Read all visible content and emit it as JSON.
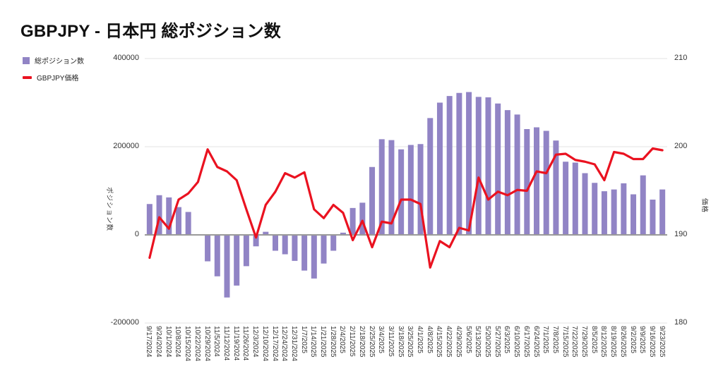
{
  "page": {
    "title": "GBPJPY - 日本円 総ポジション数"
  },
  "legend": {
    "position": "top-left",
    "items": [
      {
        "label": "総ポジション数",
        "marker": "bar-swatch",
        "color": "#9184C5"
      },
      {
        "label": "GBPJPY価格",
        "marker": "line-swatch",
        "color": "#EA1220"
      }
    ]
  },
  "chart_data": {
    "type": "combo",
    "title": "GBPJPY - 日本円 総ポジション数",
    "categories": [
      "9/17/2024",
      "9/24/2024",
      "10/1/2024",
      "10/8/2024",
      "10/15/2024",
      "10/22/2024",
      "10/29/2024",
      "11/5/2024",
      "11/12/2024",
      "11/19/2024",
      "11/26/2024",
      "12/3/2024",
      "12/10/2024",
      "12/17/2024",
      "12/24/2024",
      "12/31/2024",
      "1/7/2025",
      "1/14/2025",
      "1/21/2025",
      "1/28/2025",
      "2/4/2025",
      "2/11/2025",
      "2/18/2025",
      "2/25/2025",
      "3/4/2025",
      "3/11/2025",
      "3/18/2025",
      "3/25/2025",
      "4/1/2025",
      "4/8/2025",
      "4/15/2025",
      "4/22/2025",
      "4/29/2025",
      "5/6/2025",
      "5/13/2025",
      "5/20/2025",
      "5/27/2025",
      "6/3/2025",
      "6/10/2025",
      "6/17/2025",
      "6/24/2025",
      "7/1/2025",
      "7/8/2025",
      "7/15/2025",
      "7/22/2025",
      "7/29/2025",
      "8/5/2025",
      "8/12/2025",
      "8/19/2025",
      "8/26/2025",
      "9/2/2025",
      "9/9/2025",
      "9/16/2025",
      "9/23/2025"
    ],
    "series": [
      {
        "name": "総ポジション数",
        "type": "bar",
        "axis": "left",
        "color": "#9184C5",
        "values": [
          70000,
          90000,
          85000,
          63000,
          52000,
          0,
          -60000,
          -94000,
          -142000,
          -115000,
          -71000,
          -26000,
          7000,
          -36000,
          -44000,
          -59000,
          -81000,
          -99000,
          -65000,
          -36000,
          5000,
          61000,
          73000,
          154000,
          217000,
          215000,
          194000,
          204000,
          206000,
          265000,
          300000,
          315000,
          322000,
          324000,
          313000,
          312000,
          298000,
          283000,
          273000,
          240000,
          244000,
          236000,
          214000,
          166000,
          164000,
          140000,
          118000,
          99000,
          103000,
          117000,
          92000,
          135000,
          80000,
          103000
        ]
      },
      {
        "name": "GBPJPY価格",
        "type": "line",
        "axis": "right",
        "color": "#EA1220",
        "values": [
          187.4,
          192.0,
          190.7,
          194.0,
          194.7,
          196.0,
          199.7,
          197.7,
          197.2,
          196.2,
          192.9,
          189.7,
          193.4,
          194.9,
          197.0,
          196.5,
          197.1,
          192.9,
          191.9,
          193.4,
          192.5,
          189.4,
          191.6,
          188.6,
          191.5,
          191.3,
          194.0,
          194.0,
          193.5,
          186.3,
          189.3,
          188.6,
          190.8,
          190.5,
          196.5,
          194.0,
          194.9,
          194.5,
          195.1,
          195.0,
          197.2,
          197.0,
          199.1,
          199.2,
          198.5,
          198.3,
          198.0,
          196.2,
          199.4,
          199.2,
          198.6,
          198.6,
          199.8,
          199.6
        ]
      }
    ],
    "left_axis": {
      "title": "ポジション数",
      "min": -200000,
      "max": 400000,
      "ticks": [
        400000,
        200000,
        0,
        -200000
      ]
    },
    "right_axis": {
      "title": "価格",
      "min": 180,
      "max": 210,
      "ticks": [
        210,
        200,
        190,
        180
      ]
    },
    "grid": true,
    "zero_line": true,
    "colors": {
      "grid": "#E3E3E3",
      "zero_line": "#9A9A9A",
      "tick_text": "#333333"
    },
    "legend_position": "top-left"
  }
}
